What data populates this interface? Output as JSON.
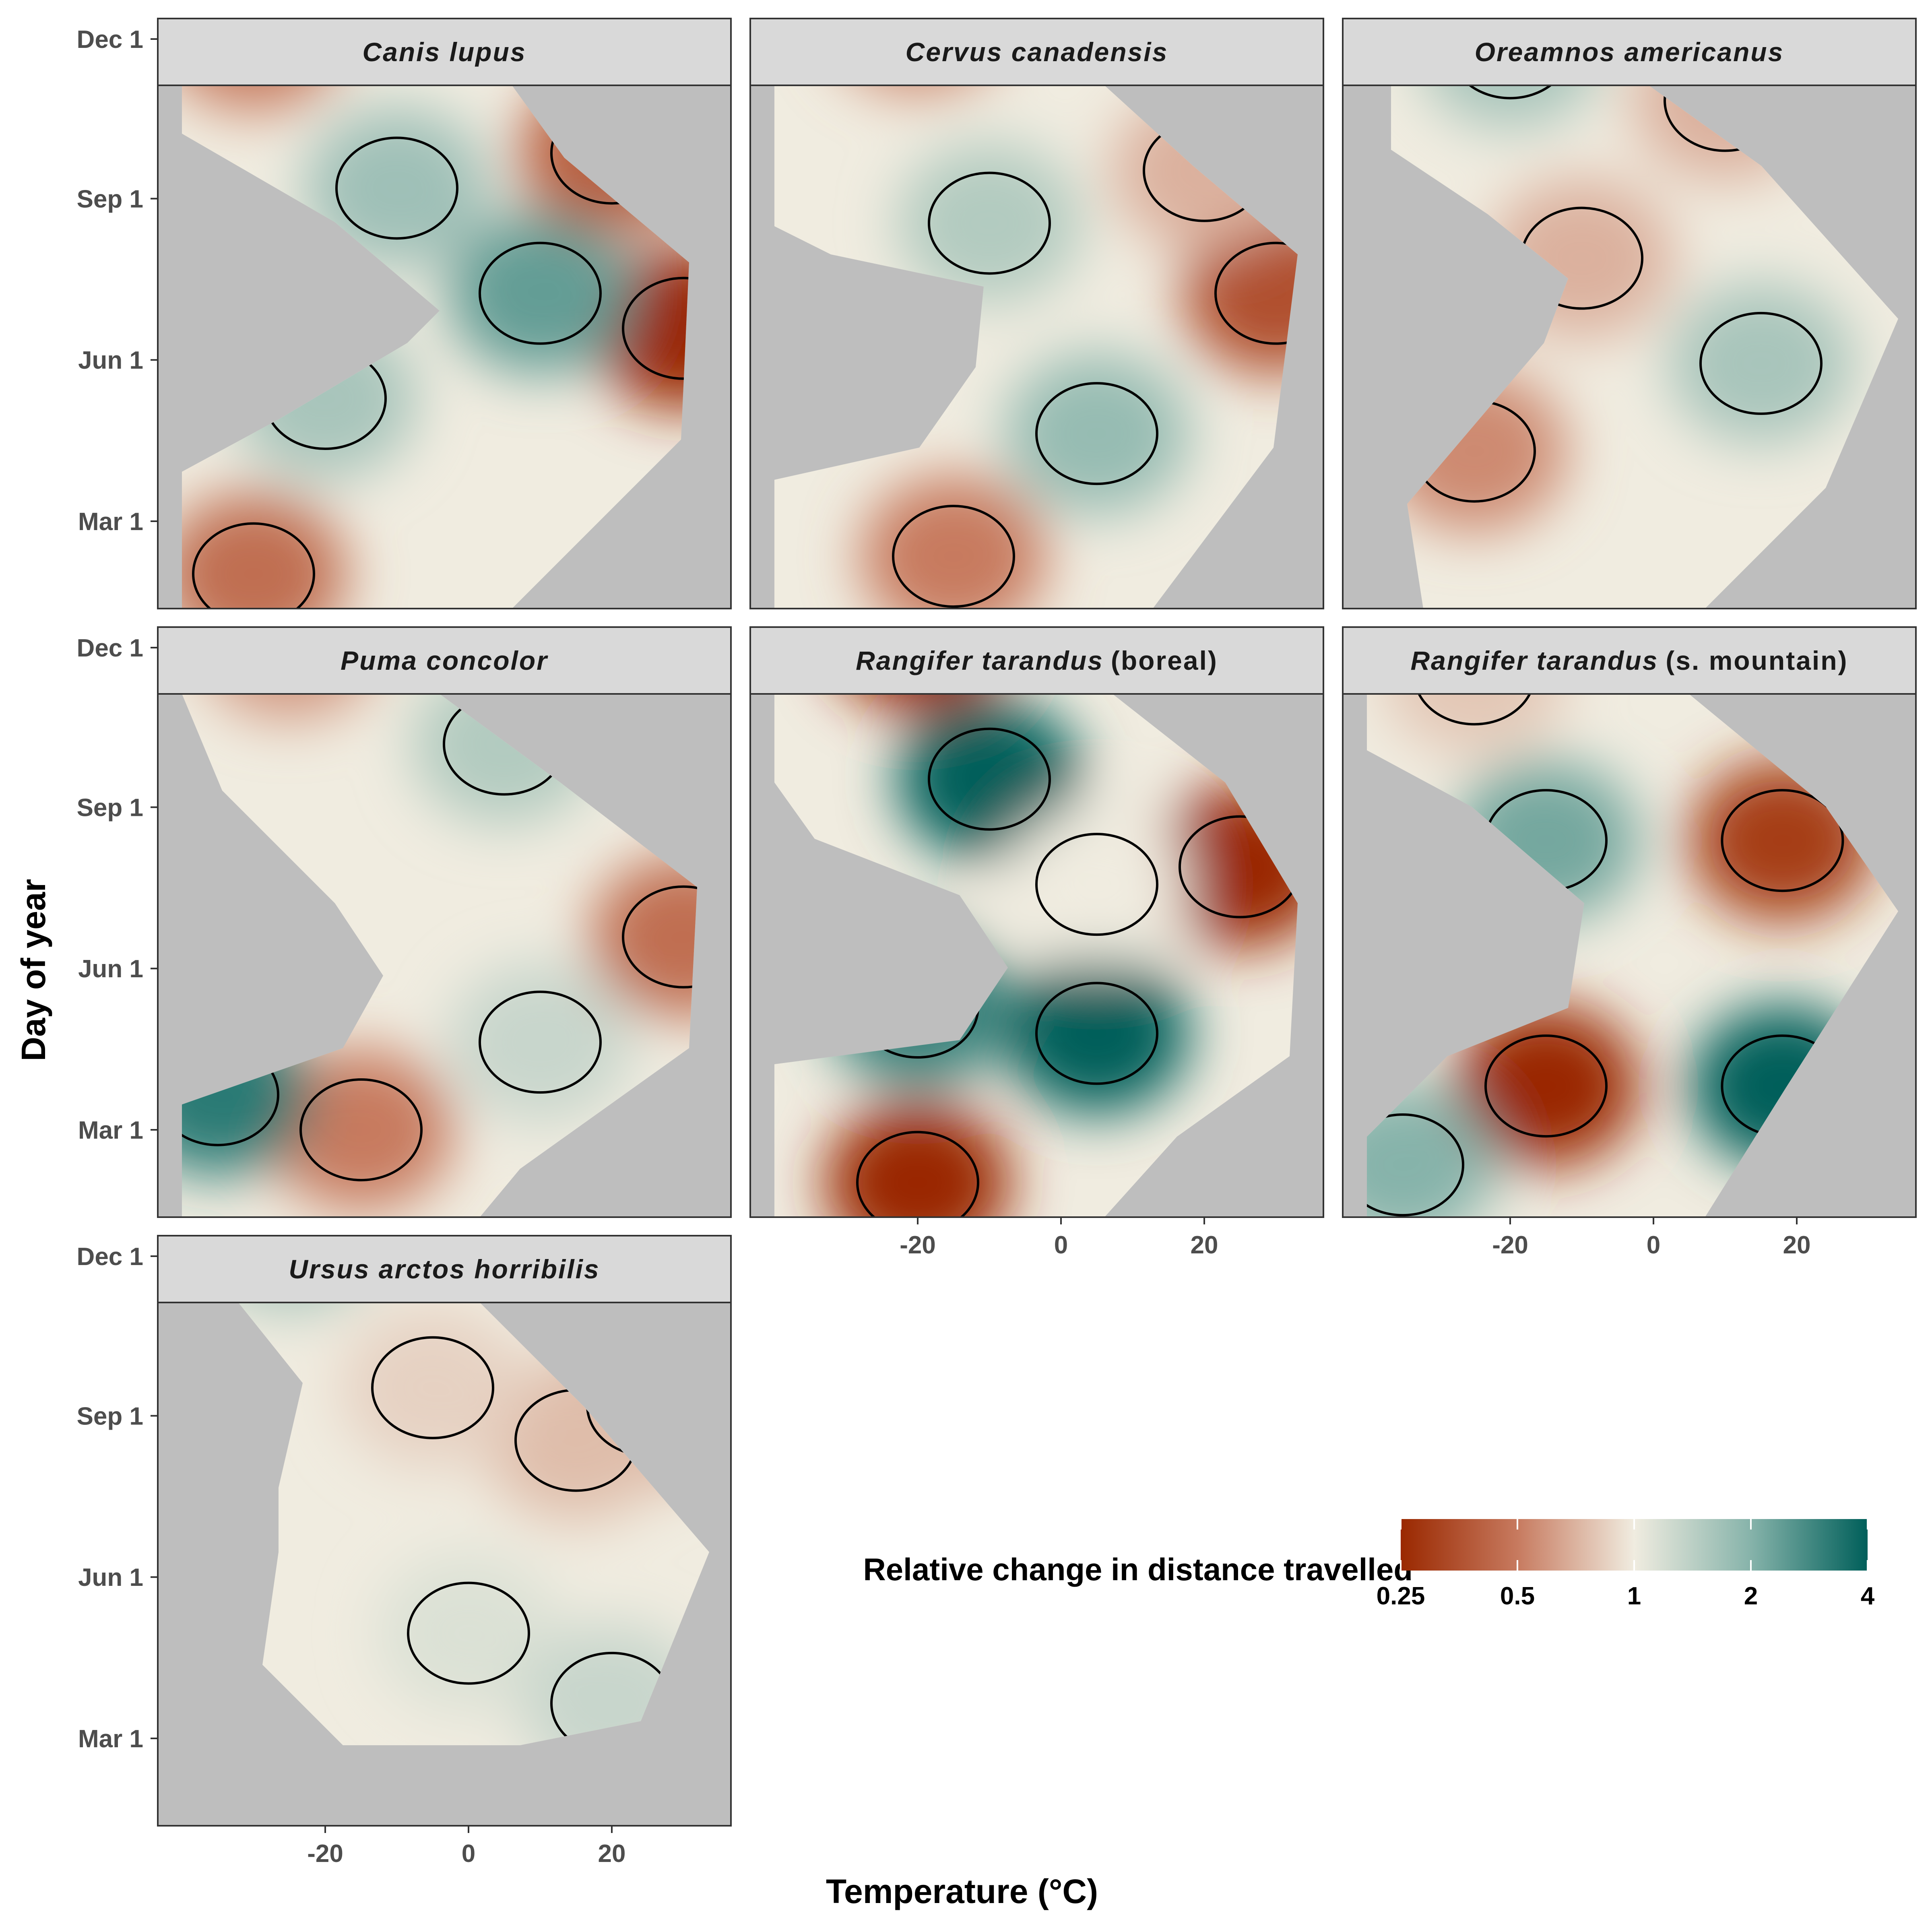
{
  "chart_data": {
    "type": "heatmap",
    "facet_layout": "3 columns x 3 rows",
    "xlabel": "Temperature (°C)",
    "ylabel": "Day of year",
    "x_ticks": [
      -20,
      0,
      20
    ],
    "x_tick_labels": [
      "-20",
      "0",
      "20"
    ],
    "xlim": [
      -40,
      40
    ],
    "y_ticks": [
      60,
      152,
      244,
      335
    ],
    "y_tick_labels": [
      "Mar 1",
      "Jun 1",
      "Sep 1",
      "Dec 1"
    ],
    "ylim": [
      1,
      366
    ],
    "background_color": "#bebebe",
    "grid": false,
    "legend": {
      "title": "Relative change in distance travelled",
      "position": "bottom-right",
      "scale": "log",
      "breaks": [
        0.25,
        0.5,
        1,
        2,
        4
      ],
      "break_labels": [
        "0.25",
        "0.5",
        "1",
        "2",
        "4"
      ],
      "colors": [
        "#9a2800",
        "#c77a5f",
        "#f0ece0",
        "#86b3aa",
        "#005f5a"
      ]
    },
    "panels": [
      {
        "title_italic": "Canis lupus",
        "title_plain": "",
        "hotspots": [
          {
            "temp": 30,
            "day": 170,
            "value": 0.25
          },
          {
            "temp": 20,
            "day": 270,
            "value": 0.4
          },
          {
            "temp": 10,
            "day": 190,
            "value": 2.4
          },
          {
            "temp": -10,
            "day": 250,
            "value": 1.7
          },
          {
            "temp": -30,
            "day": 340,
            "value": 0.5
          },
          {
            "temp": -30,
            "day": 30,
            "value": 0.45
          },
          {
            "temp": -20,
            "day": 130,
            "value": 1.6
          }
        ]
      },
      {
        "title_italic": "Cervus canadensis",
        "title_plain": "",
        "hotspots": [
          {
            "temp": 30,
            "day": 190,
            "value": 0.35
          },
          {
            "temp": -20,
            "day": 350,
            "value": 0.55
          },
          {
            "temp": -15,
            "day": 40,
            "value": 0.5
          },
          {
            "temp": 5,
            "day": 110,
            "value": 1.8
          },
          {
            "temp": -10,
            "day": 230,
            "value": 1.5
          },
          {
            "temp": 20,
            "day": 260,
            "value": 0.7
          }
        ]
      },
      {
        "title_italic": "Oreamnos americanus",
        "title_plain": "",
        "hotspots": [
          {
            "temp": -20,
            "day": 330,
            "value": 1.6
          },
          {
            "temp": 15,
            "day": 150,
            "value": 1.6
          },
          {
            "temp": 10,
            "day": 300,
            "value": 0.7
          },
          {
            "temp": -25,
            "day": 100,
            "value": 0.55
          },
          {
            "temp": -10,
            "day": 210,
            "value": 0.7
          }
        ]
      },
      {
        "title_italic": "Puma concolor",
        "title_plain": "",
        "hotspots": [
          {
            "temp": -15,
            "day": 60,
            "value": 0.5
          },
          {
            "temp": -35,
            "day": 80,
            "value": 3.2
          },
          {
            "temp": 30,
            "day": 170,
            "value": 0.45
          },
          {
            "temp": -25,
            "day": 340,
            "value": 0.6
          },
          {
            "temp": 5,
            "day": 280,
            "value": 1.5
          },
          {
            "temp": 10,
            "day": 110,
            "value": 1.3
          }
        ]
      },
      {
        "title_italic": "Rangifer tarandus",
        "title_plain": "(boreal)",
        "hotspots": [
          {
            "temp": -20,
            "day": 345,
            "value": 0.2
          },
          {
            "temp": -20,
            "day": 30,
            "value": 0.2
          },
          {
            "temp": 25,
            "day": 210,
            "value": 0.2
          },
          {
            "temp": -10,
            "day": 260,
            "value": 4.5
          },
          {
            "temp": 5,
            "day": 115,
            "value": 4.5
          },
          {
            "temp": -20,
            "day": 130,
            "value": 3.0
          },
          {
            "temp": 5,
            "day": 200,
            "value": 1.0
          }
        ]
      },
      {
        "title_italic": "Rangifer tarandus",
        "title_plain": "(s. mountain)",
        "hotspots": [
          {
            "temp": -15,
            "day": 85,
            "value": 0.25
          },
          {
            "temp": 18,
            "day": 85,
            "value": 4.0
          },
          {
            "temp": 18,
            "day": 225,
            "value": 0.3
          },
          {
            "temp": -15,
            "day": 225,
            "value": 2.2
          },
          {
            "temp": -35,
            "day": 40,
            "value": 2.0
          },
          {
            "temp": -25,
            "day": 320,
            "value": 0.8
          }
        ]
      },
      {
        "title_italic": "Ursus arctos horribilis",
        "title_plain": "",
        "hotspots": [
          {
            "temp": -25,
            "day": 350,
            "value": 1.6
          },
          {
            "temp": 25,
            "day": 250,
            "value": 0.65
          },
          {
            "temp": 15,
            "day": 230,
            "value": 0.75
          },
          {
            "temp": -5,
            "day": 260,
            "value": 0.85
          },
          {
            "temp": 0,
            "day": 120,
            "value": 1.15
          },
          {
            "temp": 20,
            "day": 80,
            "value": 1.3
          }
        ]
      }
    ]
  }
}
